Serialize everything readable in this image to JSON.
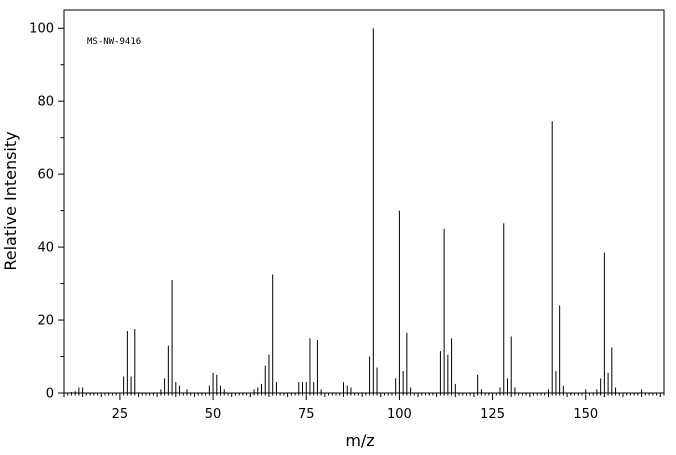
{
  "chart_data": {
    "type": "bar",
    "annotation": "MS-NW-9416",
    "xlabel": "m/z",
    "ylabel": "Relative Intensity",
    "xlim": [
      10,
      171
    ],
    "ylim": [
      0,
      105
    ],
    "x_ticks": [
      25,
      50,
      75,
      100,
      125,
      150
    ],
    "y_ticks": [
      0,
      20,
      40,
      60,
      80,
      100
    ],
    "peaks": [
      {
        "mz": 12,
        "intensity": 0.3
      },
      {
        "mz": 13,
        "intensity": 0.5
      },
      {
        "mz": 14,
        "intensity": 1.5
      },
      {
        "mz": 15,
        "intensity": 1.5
      },
      {
        "mz": 26,
        "intensity": 4.5
      },
      {
        "mz": 27,
        "intensity": 17
      },
      {
        "mz": 28,
        "intensity": 4.5
      },
      {
        "mz": 29,
        "intensity": 17.5
      },
      {
        "mz": 36,
        "intensity": 1
      },
      {
        "mz": 37,
        "intensity": 4
      },
      {
        "mz": 38,
        "intensity": 13
      },
      {
        "mz": 39,
        "intensity": 31
      },
      {
        "mz": 40,
        "intensity": 3
      },
      {
        "mz": 41,
        "intensity": 2
      },
      {
        "mz": 43,
        "intensity": 1
      },
      {
        "mz": 49,
        "intensity": 2
      },
      {
        "mz": 50,
        "intensity": 5.5
      },
      {
        "mz": 51,
        "intensity": 5
      },
      {
        "mz": 52,
        "intensity": 2
      },
      {
        "mz": 53,
        "intensity": 1
      },
      {
        "mz": 61,
        "intensity": 1
      },
      {
        "mz": 62,
        "intensity": 1.5
      },
      {
        "mz": 63,
        "intensity": 2.5
      },
      {
        "mz": 64,
        "intensity": 7.5
      },
      {
        "mz": 65,
        "intensity": 10.5
      },
      {
        "mz": 66,
        "intensity": 32.5
      },
      {
        "mz": 67,
        "intensity": 3
      },
      {
        "mz": 73,
        "intensity": 3
      },
      {
        "mz": 74,
        "intensity": 3
      },
      {
        "mz": 75,
        "intensity": 3
      },
      {
        "mz": 76,
        "intensity": 15
      },
      {
        "mz": 77,
        "intensity": 3
      },
      {
        "mz": 78,
        "intensity": 14.5
      },
      {
        "mz": 79,
        "intensity": 1
      },
      {
        "mz": 85,
        "intensity": 3
      },
      {
        "mz": 86,
        "intensity": 2
      },
      {
        "mz": 87,
        "intensity": 1.5
      },
      {
        "mz": 92,
        "intensity": 10
      },
      {
        "mz": 93,
        "intensity": 100
      },
      {
        "mz": 94,
        "intensity": 7
      },
      {
        "mz": 99,
        "intensity": 4
      },
      {
        "mz": 100,
        "intensity": 50
      },
      {
        "mz": 101,
        "intensity": 6
      },
      {
        "mz": 102,
        "intensity": 16.5
      },
      {
        "mz": 103,
        "intensity": 1.5
      },
      {
        "mz": 111,
        "intensity": 11.5
      },
      {
        "mz": 112,
        "intensity": 45
      },
      {
        "mz": 113,
        "intensity": 10.5
      },
      {
        "mz": 114,
        "intensity": 15
      },
      {
        "mz": 115,
        "intensity": 2.5
      },
      {
        "mz": 121,
        "intensity": 5
      },
      {
        "mz": 122,
        "intensity": 1
      },
      {
        "mz": 127,
        "intensity": 1.5
      },
      {
        "mz": 128,
        "intensity": 46.5
      },
      {
        "mz": 129,
        "intensity": 4
      },
      {
        "mz": 130,
        "intensity": 15.5
      },
      {
        "mz": 131,
        "intensity": 1.5
      },
      {
        "mz": 140,
        "intensity": 1
      },
      {
        "mz": 141,
        "intensity": 74.5
      },
      {
        "mz": 142,
        "intensity": 6
      },
      {
        "mz": 143,
        "intensity": 24
      },
      {
        "mz": 144,
        "intensity": 2
      },
      {
        "mz": 150,
        "intensity": 1
      },
      {
        "mz": 153,
        "intensity": 1
      },
      {
        "mz": 154,
        "intensity": 4
      },
      {
        "mz": 155,
        "intensity": 38.5
      },
      {
        "mz": 156,
        "intensity": 5.5
      },
      {
        "mz": 157,
        "intensity": 12.5
      },
      {
        "mz": 158,
        "intensity": 1.5
      },
      {
        "mz": 165,
        "intensity": 1
      }
    ]
  }
}
